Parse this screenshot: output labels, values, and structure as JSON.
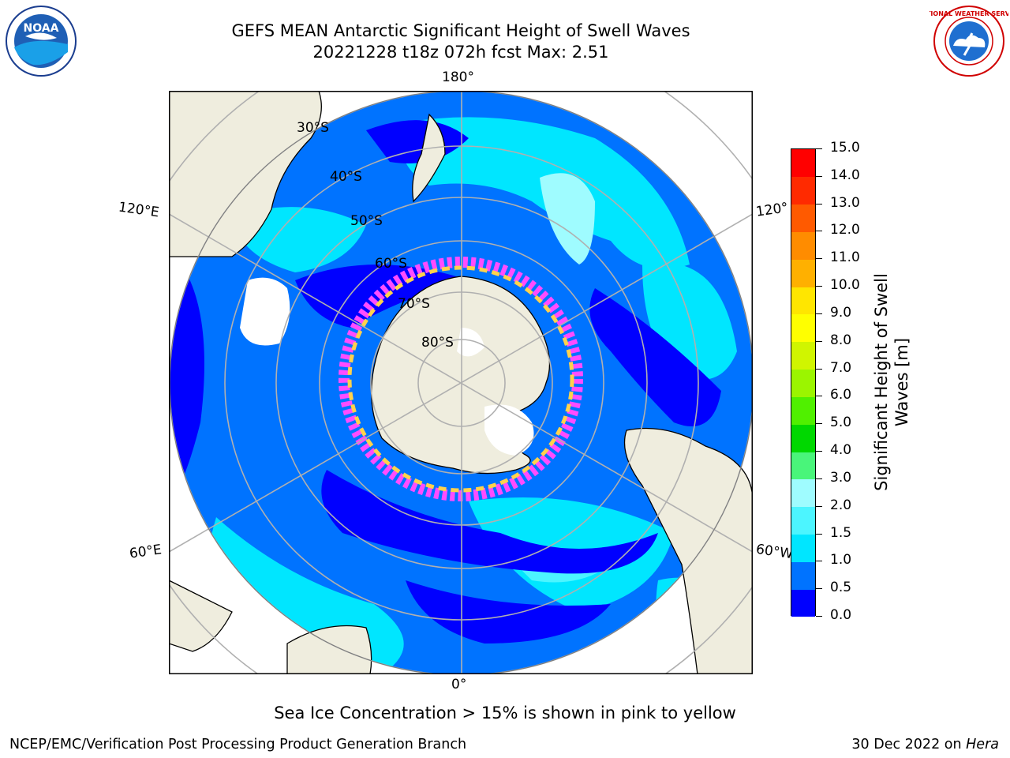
{
  "header": {
    "title_line1": "GEFS MEAN Antarctic Significant Height of Swell Waves",
    "title_line2": "20221228 t18z 072h fcst   Max: 2.51"
  },
  "logos": {
    "left": {
      "icon": "noaa-logo",
      "text": "NOAA"
    },
    "right": {
      "icon": "national-weather-service-logo",
      "text": "NATIONAL WEATHER SERVICE"
    }
  },
  "map_labels": {
    "lon_180": "180°",
    "lon_0": "0°",
    "lon_120e": "120°E",
    "lon_120w": "120°",
    "lon_60e": "60°E",
    "lon_60w": "60°W",
    "lat_30": "30°S",
    "lat_40": "40°S",
    "lat_50": "50°S",
    "lat_60": "60°S",
    "lat_70": "70°S",
    "lat_80": "80°S"
  },
  "colorbar": {
    "label": "Significant Height of Swell Waves [m]",
    "ticks": [
      "0.0",
      "0.5",
      "1.0",
      "1.5",
      "2.0",
      "3.0",
      "4.0",
      "5.0",
      "6.0",
      "7.0",
      "8.0",
      "9.0",
      "10.0",
      "11.0",
      "12.0",
      "13.0",
      "14.0",
      "15.0"
    ],
    "colors": [
      "#0000ff",
      "#0073ff",
      "#00e6ff",
      "#4cf5ff",
      "#9ffcff",
      "#49f57a",
      "#00d800",
      "#50f000",
      "#9bf500",
      "#d0f500",
      "#ffff00",
      "#ffe600",
      "#ffb000",
      "#ff8c00",
      "#ff5a00",
      "#ff2a00",
      "#ff0000"
    ],
    "ice_pink": "#ff4cff",
    "ice_yellow": "#ffd24c",
    "land": "#efedde",
    "ice_white": "#ffffff"
  },
  "caption": "Sea Ice Concentration > 15% is shown in pink to yellow",
  "footer": {
    "left": "NCEP/EMC/Verification Post Processing Product Generation Branch",
    "right_date": "30 Dec 2022 on",
    "right_machine": "Hera"
  }
}
